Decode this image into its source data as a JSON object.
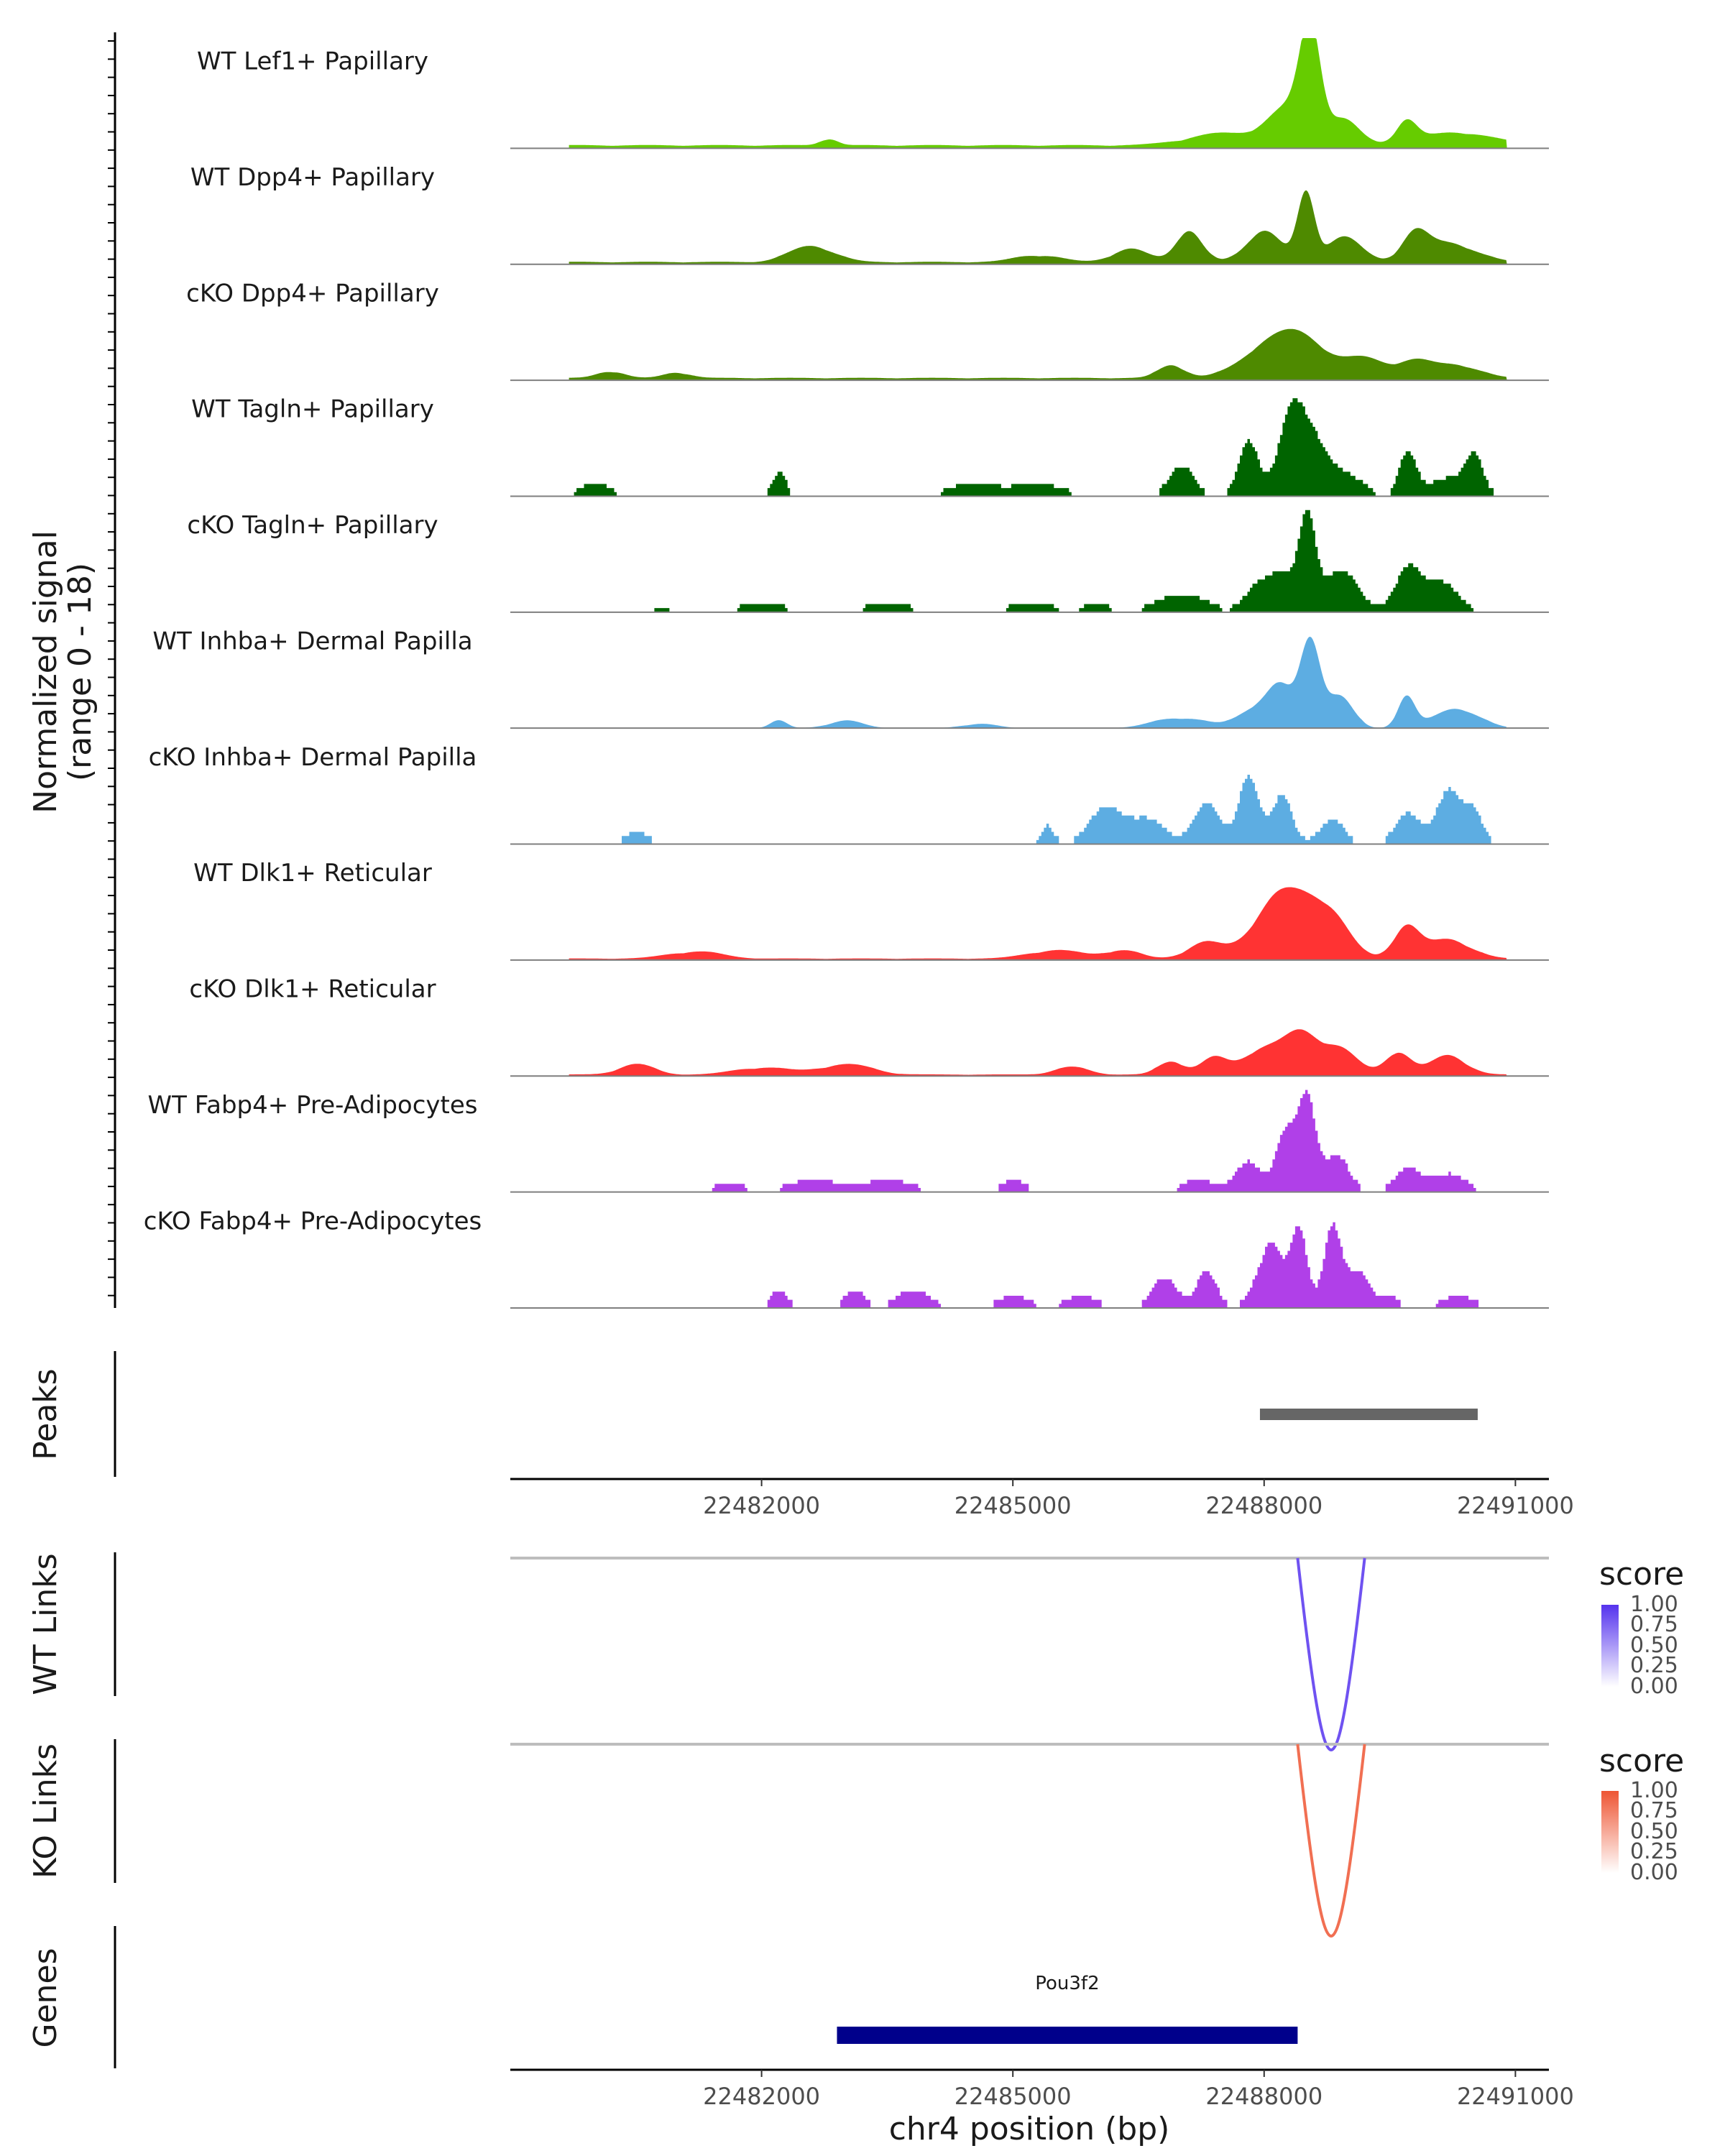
{
  "chart_data": {
    "type": "area",
    "title": "",
    "xlabel": "chr4 position (bp)",
    "x_range": [
      22479000,
      22491400
    ],
    "x_ticks": [
      22482000,
      22485000,
      22488000,
      22491000
    ],
    "x_tick_labels": [
      "22482000",
      "22485000",
      "22488000",
      "22491000"
    ],
    "coverage": {
      "ylabel_line1": "Normalized signal",
      "ylabel_line2": "(range 0 - 18)",
      "y_range": [
        0,
        18
      ],
      "tracks": [
        {
          "name": "WT Lef1+ Papillary",
          "color": "#66cc00",
          "style": "smooth",
          "base": 0.4,
          "peaks": [
            [
              22488550,
              17,
              120
            ],
            [
              22488300,
              6,
              250
            ],
            [
              22488950,
              4,
              180
            ],
            [
              22489700,
              3.5,
              120
            ],
            [
              22487500,
              1.8,
              400
            ],
            [
              22490300,
              2.0,
              400
            ],
            [
              22482800,
              1.0,
              100
            ]
          ]
        },
        {
          "name": "WT Dpp4+ Papillary",
          "color": "#4e8a00",
          "style": "smooth",
          "base": 0.3,
          "peaks": [
            [
              22488500,
              11,
              100
            ],
            [
              22487100,
              5,
              150
            ],
            [
              22488000,
              5,
              200
            ],
            [
              22488950,
              4,
              200
            ],
            [
              22489800,
              4,
              150
            ],
            [
              22490200,
              3,
              300
            ],
            [
              22482600,
              2.5,
              250
            ],
            [
              22486400,
              2,
              200
            ],
            [
              22485300,
              1,
              250
            ]
          ]
        },
        {
          "name": "cKO Dpp4+ Papillary",
          "color": "#4e8a00",
          "style": "smooth",
          "base": 0.3,
          "peaks": [
            [
              22488450,
              6,
              300
            ],
            [
              22488000,
              4,
              300
            ],
            [
              22489200,
              3,
              250
            ],
            [
              22489800,
              2.5,
              200
            ],
            [
              22490300,
              2,
              250
            ],
            [
              22486900,
              2,
              150
            ],
            [
              22480200,
              1,
              150
            ],
            [
              22481000,
              0.8,
              150
            ]
          ]
        },
        {
          "name": "WT Tagln+ Papillary",
          "color": "#006400",
          "style": "blocky",
          "base": 0.0,
          "peaks": [
            [
              22488300,
              11,
              150
            ],
            [
              22487800,
              9,
              120
            ],
            [
              22488550,
              9,
              200
            ],
            [
              22487000,
              5,
              150
            ],
            [
              22489700,
              7,
              100
            ],
            [
              22490500,
              6,
              100
            ],
            [
              22482200,
              4,
              80
            ],
            [
              22480000,
              2,
              200
            ],
            [
              22484500,
              2,
              300
            ],
            [
              22485300,
              2,
              300
            ],
            [
              22489000,
              3,
              200
            ],
            [
              22490200,
              3,
              250
            ]
          ]
        },
        {
          "name": "cKO Tagln+ Papillary",
          "color": "#006400",
          "style": "blocky",
          "base": 0.0,
          "peaks": [
            [
              22488500,
              15,
              100
            ],
            [
              22488200,
              6,
              150
            ],
            [
              22488900,
              7,
              200
            ],
            [
              22489700,
              7,
              150
            ],
            [
              22490100,
              5,
              200
            ],
            [
              22487900,
              4,
              150
            ],
            [
              22487000,
              3,
              300
            ],
            [
              22482000,
              1.5,
              300
            ],
            [
              22483500,
              1.5,
              300
            ],
            [
              22485200,
              1.5,
              300
            ],
            [
              22486000,
              1.2,
              200
            ],
            [
              22480800,
              1,
              200
            ]
          ]
        },
        {
          "name": "WT Inhba+ Dermal Papilla",
          "color": "#5dade2",
          "style": "smooth",
          "base": 0.0,
          "peaks": [
            [
              22488550,
              14,
              120
            ],
            [
              22488200,
              6,
              150
            ],
            [
              22488900,
              5,
              150
            ],
            [
              22487900,
              3,
              200
            ],
            [
              22489700,
              5,
              100
            ],
            [
              22490300,
              3,
              250
            ],
            [
              22487000,
              1.5,
              300
            ],
            [
              22482200,
              1,
              100
            ],
            [
              22483000,
              1,
              200
            ],
            [
              22484600,
              0.6,
              200
            ]
          ]
        },
        {
          "name": "cKO Inhba+ Dermal Papilla",
          "color": "#5dade2",
          "style": "blocky",
          "base": 0.0,
          "peaks": [
            [
              22487800,
              11,
              120
            ],
            [
              22487300,
              7,
              150
            ],
            [
              22488200,
              8,
              120
            ],
            [
              22486100,
              6,
              200
            ],
            [
              22486600,
              4,
              200
            ],
            [
              22489700,
              5,
              150
            ],
            [
              22490200,
              9,
              150
            ],
            [
              22488800,
              4,
              150
            ],
            [
              22490500,
              5,
              100
            ],
            [
              22480500,
              2,
              150
            ],
            [
              22485400,
              3,
              80
            ]
          ]
        },
        {
          "name": "WT Dlk1+ Reticular",
          "color": "#ff3333",
          "style": "smooth",
          "base": 0.2,
          "peaks": [
            [
              22488450,
              9,
              250
            ],
            [
              22488100,
              6,
              200
            ],
            [
              22488850,
              5,
              200
            ],
            [
              22489700,
              5,
              150
            ],
            [
              22490200,
              3,
              250
            ],
            [
              22487300,
              2.5,
              200
            ],
            [
              22487800,
              2,
              200
            ],
            [
              22481200,
              1,
              300
            ],
            [
              22485500,
              1.2,
              300
            ],
            [
              22486300,
              1.2,
              200
            ]
          ]
        },
        {
          "name": "cKO Dlk1+ Reticular",
          "color": "#ff3333",
          "style": "smooth",
          "base": 0.2,
          "peaks": [
            [
              22488450,
              6,
              200
            ],
            [
              22488000,
              4,
              250
            ],
            [
              22488900,
              4,
              200
            ],
            [
              22489600,
              3.5,
              150
            ],
            [
              22490200,
              3,
              200
            ],
            [
              22487400,
              2.5,
              150
            ],
            [
              22486900,
              2,
              150
            ],
            [
              22480500,
              1.5,
              200
            ],
            [
              22482000,
              1,
              300
            ],
            [
              22483000,
              1.5,
              300
            ],
            [
              22485700,
              1,
              200
            ]
          ]
        },
        {
          "name": "WT Fabp4+ Pre-Adipocytes",
          "color": "#b040e8",
          "style": "blocky",
          "base": 0.0,
          "peaks": [
            [
              22488500,
              15,
              100
            ],
            [
              22488250,
              10,
              120
            ],
            [
              22488850,
              6,
              150
            ],
            [
              22487800,
              5,
              150
            ],
            [
              22489700,
              4,
              150
            ],
            [
              22490200,
              3,
              200
            ],
            [
              22487200,
              2,
              200
            ],
            [
              22482600,
              2,
              300
            ],
            [
              22483500,
              2,
              300
            ],
            [
              22485000,
              2,
              150
            ],
            [
              22481600,
              1.5,
              200
            ]
          ]
        },
        {
          "name": "cKO Fabp4+ Pre-Adipocytes",
          "color": "#b040e8",
          "style": "blocky",
          "base": 0.0,
          "peaks": [
            [
              22488400,
              13,
              100
            ],
            [
              22488800,
              13,
              100
            ],
            [
              22487300,
              6,
              120
            ],
            [
              22486800,
              5,
              150
            ],
            [
              22488100,
              8,
              120
            ],
            [
              22489100,
              6,
              150
            ],
            [
              22487950,
              4,
              150
            ],
            [
              22482200,
              3,
              100
            ],
            [
              22483100,
              3,
              120
            ],
            [
              22483800,
              3,
              200
            ],
            [
              22485000,
              2,
              200
            ],
            [
              22485800,
              2,
              200
            ],
            [
              22489500,
              2,
              100
            ],
            [
              22490300,
              2,
              200
            ]
          ]
        }
      ]
    },
    "peaks_track": {
      "label": "Peaks",
      "color": "#666666",
      "ranges": [
        [
          22487950,
          22490550
        ]
      ]
    },
    "links": [
      {
        "label": "WT Links",
        "legend_title": "score",
        "color": "#5533ee",
        "low_color": "#ffffff",
        "from": 22488400,
        "to": 22489200,
        "score": 0.75,
        "legend_values": [
          "1.00",
          "0.75",
          "0.50",
          "0.25",
          "0.00"
        ]
      },
      {
        "label": "KO Links",
        "legend_title": "score",
        "color": "#ee5533",
        "low_color": "#ffffff",
        "from": 22488400,
        "to": 22489200,
        "score": 0.75,
        "legend_values": [
          "1.00",
          "0.75",
          "0.50",
          "0.25",
          "0.00"
        ]
      }
    ],
    "genes": {
      "label": "Genes",
      "items": [
        {
          "name": "Pou3f2",
          "start": 22482900,
          "end": 22488400,
          "color": "#00008b"
        }
      ]
    }
  }
}
